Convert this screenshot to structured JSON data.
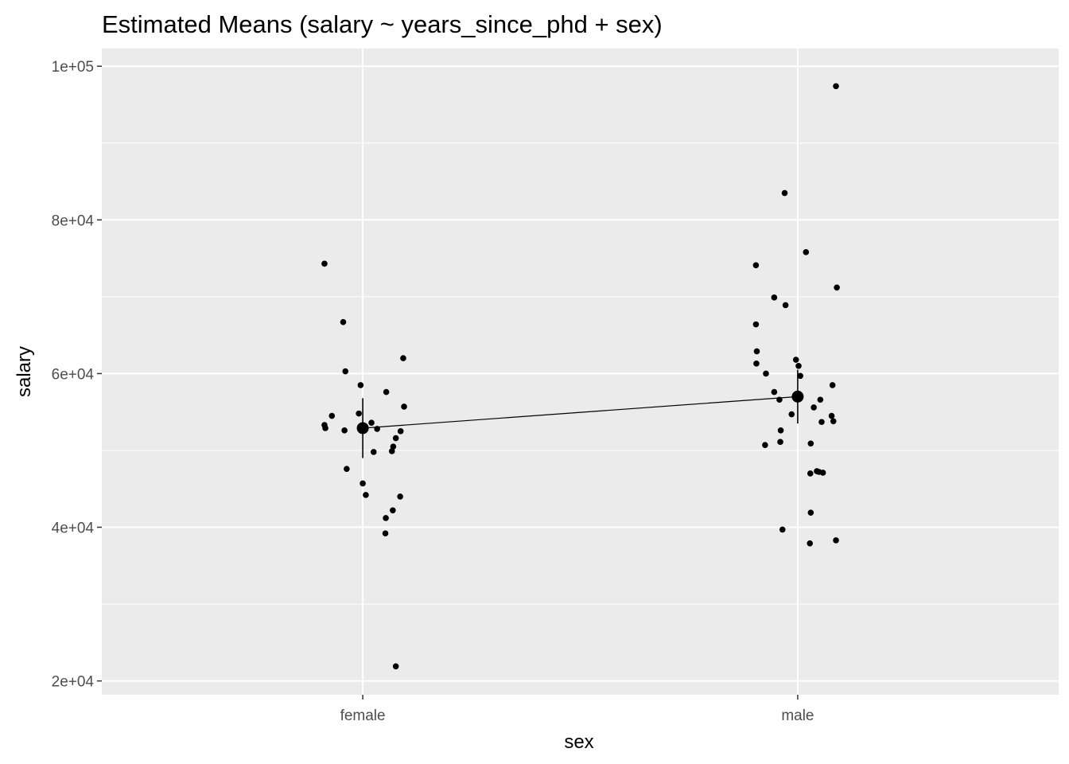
{
  "chart_data": {
    "type": "scatter",
    "title": "Estimated Means (salary ~ years_since_phd + sex)",
    "xlabel": "sex",
    "ylabel": "salary",
    "categories": [
      "female",
      "male"
    ],
    "ylim": [
      18200,
      102300
    ],
    "yticks": [
      20000,
      40000,
      60000,
      80000,
      100000
    ],
    "ytick_labels": [
      "2e+04",
      "4e+04",
      "6e+04",
      "8e+04",
      "1e+05"
    ],
    "grid": true,
    "legend": "none",
    "colors": {
      "panel_background": "#ebebeb",
      "grid": "#ffffff",
      "points": "#000000",
      "tick_text": "#4d4d4d",
      "tick_mark": "#333333"
    },
    "estimated_means": [
      {
        "category": "female",
        "mean": 52900,
        "ci_low": 49000,
        "ci_high": 56800
      },
      {
        "category": "male",
        "mean": 57000,
        "ci_low": 53500,
        "ci_high": 60500
      }
    ],
    "observations": [
      {
        "category": "female",
        "jitter": -0.088,
        "salary": 74300
      },
      {
        "category": "female",
        "jitter": -0.045,
        "salary": 66700
      },
      {
        "category": "female",
        "jitter": -0.04,
        "salary": 60300
      },
      {
        "category": "female",
        "jitter": 0.093,
        "salary": 62000
      },
      {
        "category": "female",
        "jitter": -0.005,
        "salary": 58500
      },
      {
        "category": "female",
        "jitter": 0.054,
        "salary": 57600
      },
      {
        "category": "female",
        "jitter": 0.095,
        "salary": 55700
      },
      {
        "category": "female",
        "jitter": -0.071,
        "salary": 54500
      },
      {
        "category": "female",
        "jitter": -0.009,
        "salary": 54800
      },
      {
        "category": "female",
        "jitter": 0.02,
        "salary": 53600
      },
      {
        "category": "female",
        "jitter": -0.088,
        "salary": 53300
      },
      {
        "category": "female",
        "jitter": -0.086,
        "salary": 52900
      },
      {
        "category": "female",
        "jitter": -0.042,
        "salary": 52600
      },
      {
        "category": "female",
        "jitter": 0.033,
        "salary": 52800
      },
      {
        "category": "female",
        "jitter": 0.087,
        "salary": 52500
      },
      {
        "category": "female",
        "jitter": 0.076,
        "salary": 51600
      },
      {
        "category": "female",
        "jitter": 0.07,
        "salary": 50500
      },
      {
        "category": "female",
        "jitter": 0.067,
        "salary": 49900
      },
      {
        "category": "female",
        "jitter": 0.025,
        "salary": 49800
      },
      {
        "category": "female",
        "jitter": -0.037,
        "salary": 47600
      },
      {
        "category": "female",
        "jitter": 0.0,
        "salary": 45700
      },
      {
        "category": "female",
        "jitter": 0.007,
        "salary": 44200
      },
      {
        "category": "female",
        "jitter": 0.086,
        "salary": 44000
      },
      {
        "category": "female",
        "jitter": 0.069,
        "salary": 42200
      },
      {
        "category": "female",
        "jitter": 0.053,
        "salary": 41200
      },
      {
        "category": "female",
        "jitter": 0.052,
        "salary": 39200
      },
      {
        "category": "female",
        "jitter": 0.076,
        "salary": 21900
      },
      {
        "category": "male",
        "jitter": 0.088,
        "salary": 97400
      },
      {
        "category": "male",
        "jitter": -0.03,
        "salary": 83500
      },
      {
        "category": "male",
        "jitter": 0.019,
        "salary": 75800
      },
      {
        "category": "male",
        "jitter": -0.096,
        "salary": 74100
      },
      {
        "category": "male",
        "jitter": 0.09,
        "salary": 71200
      },
      {
        "category": "male",
        "jitter": -0.054,
        "salary": 69900
      },
      {
        "category": "male",
        "jitter": -0.028,
        "salary": 68900
      },
      {
        "category": "male",
        "jitter": -0.096,
        "salary": 66400
      },
      {
        "category": "male",
        "jitter": -0.094,
        "salary": 62900
      },
      {
        "category": "male",
        "jitter": -0.004,
        "salary": 61800
      },
      {
        "category": "male",
        "jitter": -0.095,
        "salary": 61300
      },
      {
        "category": "male",
        "jitter": 0.002,
        "salary": 61000
      },
      {
        "category": "male",
        "jitter": -0.073,
        "salary": 60000
      },
      {
        "category": "male",
        "jitter": 0.006,
        "salary": 59700
      },
      {
        "category": "male",
        "jitter": 0.08,
        "salary": 58500
      },
      {
        "category": "male",
        "jitter": -0.054,
        "salary": 57600
      },
      {
        "category": "male",
        "jitter": -0.042,
        "salary": 56600
      },
      {
        "category": "male",
        "jitter": 0.052,
        "salary": 56600
      },
      {
        "category": "male",
        "jitter": 0.037,
        "salary": 55600
      },
      {
        "category": "male",
        "jitter": -0.014,
        "salary": 54700
      },
      {
        "category": "male",
        "jitter": 0.078,
        "salary": 54500
      },
      {
        "category": "male",
        "jitter": 0.082,
        "salary": 53800
      },
      {
        "category": "male",
        "jitter": 0.055,
        "salary": 53700
      },
      {
        "category": "male",
        "jitter": -0.039,
        "salary": 52600
      },
      {
        "category": "male",
        "jitter": -0.04,
        "salary": 51100
      },
      {
        "category": "male",
        "jitter": 0.03,
        "salary": 50900
      },
      {
        "category": "male",
        "jitter": -0.075,
        "salary": 50700
      },
      {
        "category": "male",
        "jitter": 0.044,
        "salary": 47300
      },
      {
        "category": "male",
        "jitter": 0.049,
        "salary": 47200
      },
      {
        "category": "male",
        "jitter": 0.058,
        "salary": 47100
      },
      {
        "category": "male",
        "jitter": 0.029,
        "salary": 47000
      },
      {
        "category": "male",
        "jitter": 0.03,
        "salary": 41900
      },
      {
        "category": "male",
        "jitter": -0.035,
        "salary": 39700
      },
      {
        "category": "male",
        "jitter": 0.088,
        "salary": 38300
      },
      {
        "category": "male",
        "jitter": 0.028,
        "salary": 37900
      }
    ]
  }
}
